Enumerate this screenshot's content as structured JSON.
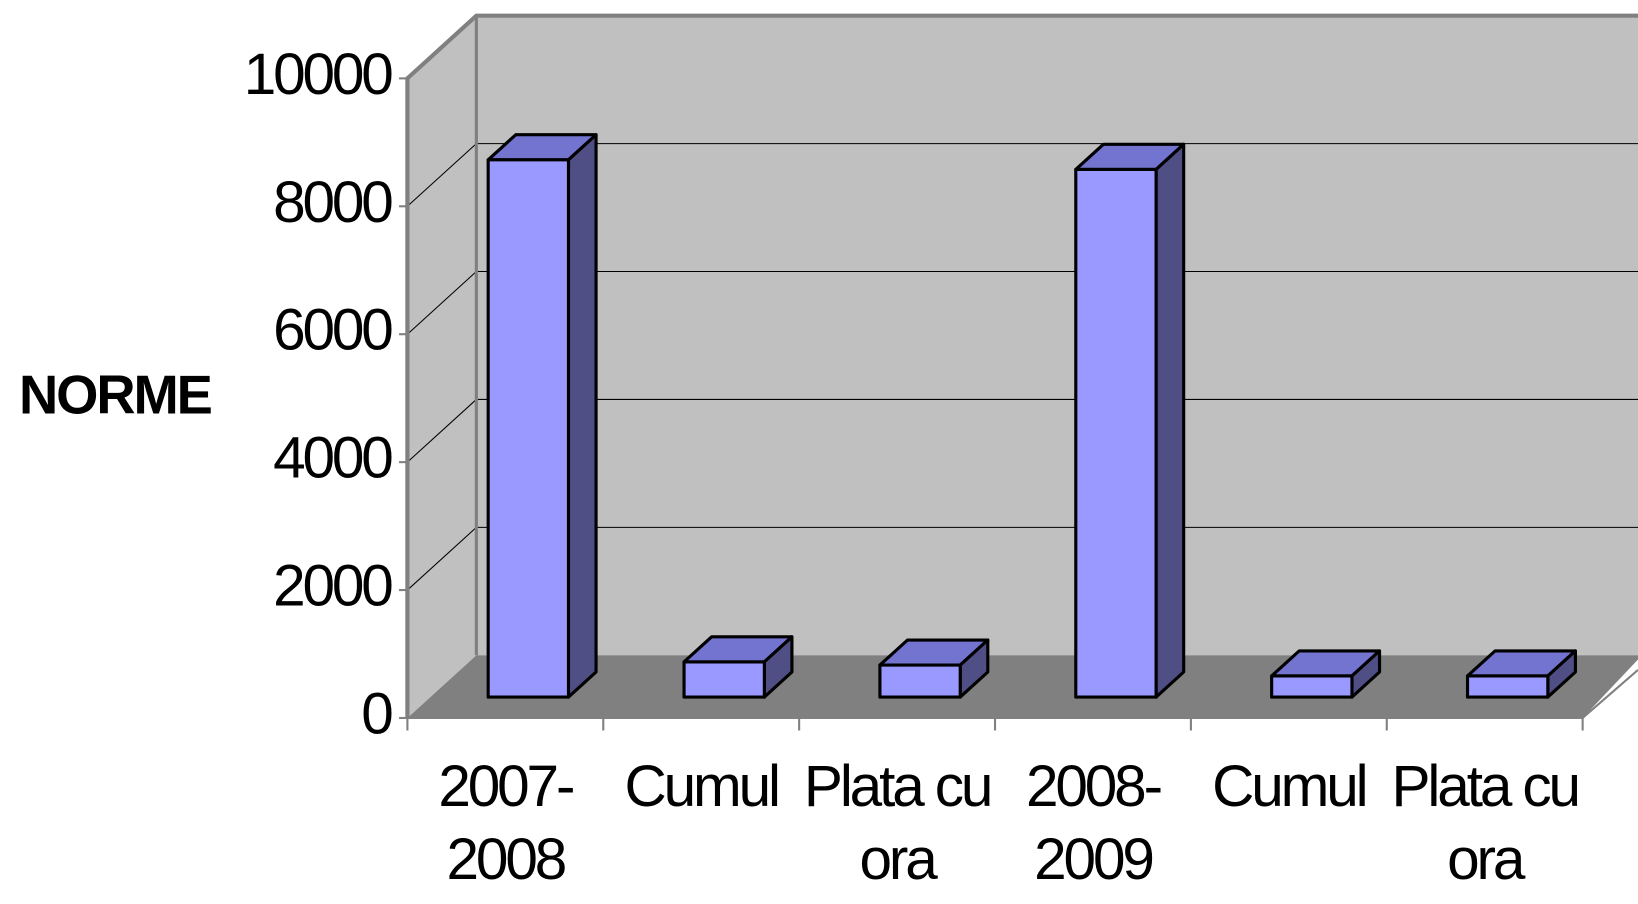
{
  "chart_data": {
    "type": "bar3d",
    "y_label": "NORME",
    "categories": [
      "2007-2008",
      "Cumul",
      "Plata cu ora",
      "2008-2009",
      "Cumul",
      "Plata cu ora"
    ],
    "values": [
      8400,
      550,
      500,
      8250,
      330,
      330
    ],
    "colors": {
      "front": "#9999ff",
      "top": "#7373d0",
      "side": "#4f4f86"
    },
    "ylim": [
      0,
      10000
    ],
    "yticks": [
      0,
      2000,
      4000,
      6000,
      8000,
      10000
    ],
    "grid": true
  }
}
